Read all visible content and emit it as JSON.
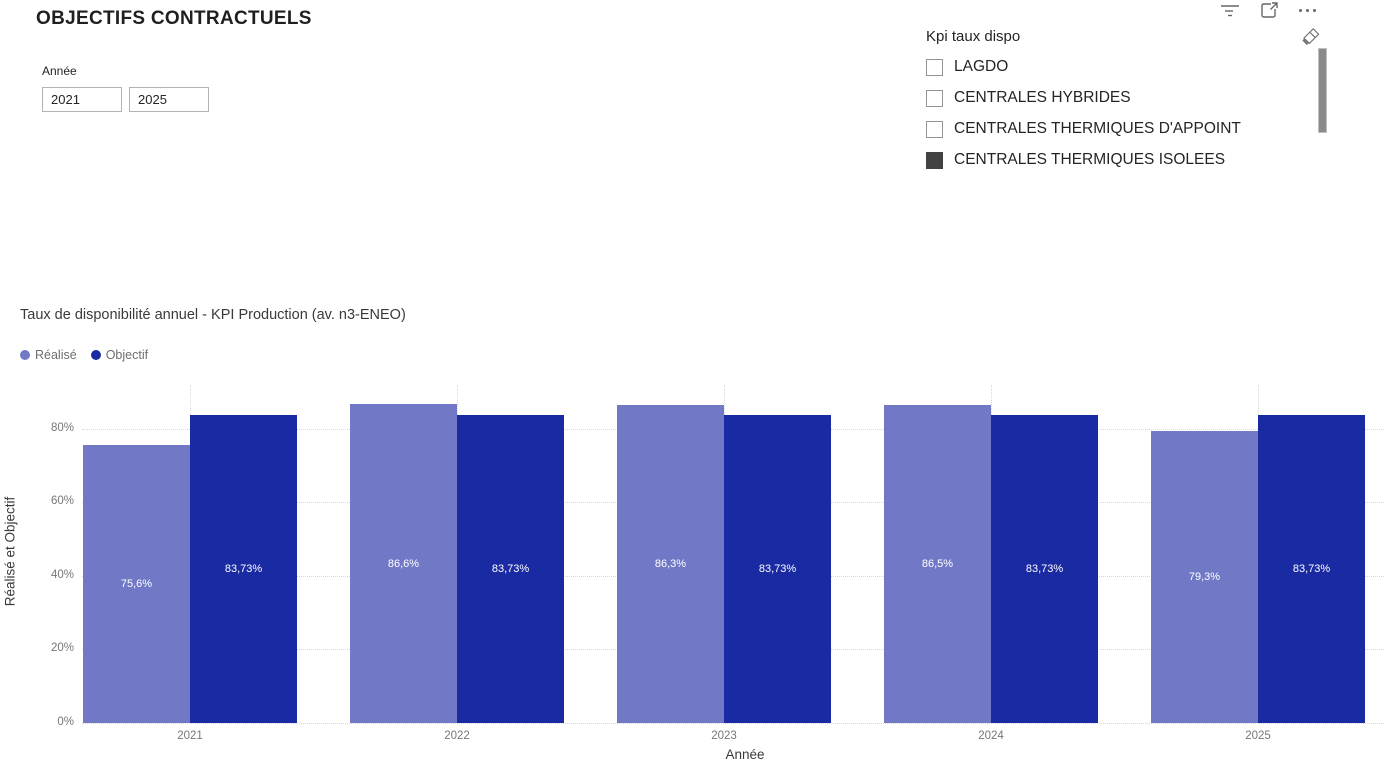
{
  "report": {
    "title": "OBJECTIFS CONTRACTUELS"
  },
  "toolbar": {
    "filter_icon": "filter-funnel",
    "focus_icon": "open-in-focus-mode",
    "more_icon": "more-options-ellipsis"
  },
  "slicer_annee": {
    "label": "Année",
    "start_value": "2021",
    "end_value": "2025"
  },
  "slicer_kpi": {
    "title": "Kpi taux dispo",
    "clear_icon": "eraser-clear-selections",
    "items": [
      {
        "label": "LAGDO",
        "checked": false
      },
      {
        "label": "CENTRALES HYBRIDES",
        "checked": false
      },
      {
        "label": "CENTRALES THERMIQUES D'APPOINT",
        "checked": false
      },
      {
        "label": "CENTRALES THERMIQUES ISOLEES",
        "checked": true
      }
    ]
  },
  "chart_data": {
    "type": "bar",
    "title": "Taux de disponibilité annuel - KPI Production (av. n3-ENEO)",
    "categories": [
      "2021",
      "2022",
      "2023",
      "2024",
      "2025"
    ],
    "series": [
      {
        "name": "Réalisé",
        "color": "#7179C7",
        "values": [
          75.6,
          86.6,
          86.3,
          86.5,
          79.3
        ],
        "labels": [
          "75,6%",
          "86,6%",
          "86,3%",
          "86,5%",
          "79,3%"
        ]
      },
      {
        "name": "Objectif",
        "color": "#1A2AA3",
        "values": [
          83.73,
          83.73,
          83.73,
          83.73,
          83.73
        ],
        "labels": [
          "83,73%",
          "83,73%",
          "83,73%",
          "83,73%",
          "83,73%"
        ]
      }
    ],
    "xlabel": "Année",
    "ylabel": "Réalisé et Objectif",
    "ylim": [
      0,
      91.8
    ],
    "y_ticks": [
      "0%",
      "20%",
      "40%",
      "60%",
      "80%"
    ],
    "y_tick_values": [
      0,
      20,
      40,
      60,
      80
    ],
    "legend_position": "top-left",
    "grid": "dotted"
  }
}
